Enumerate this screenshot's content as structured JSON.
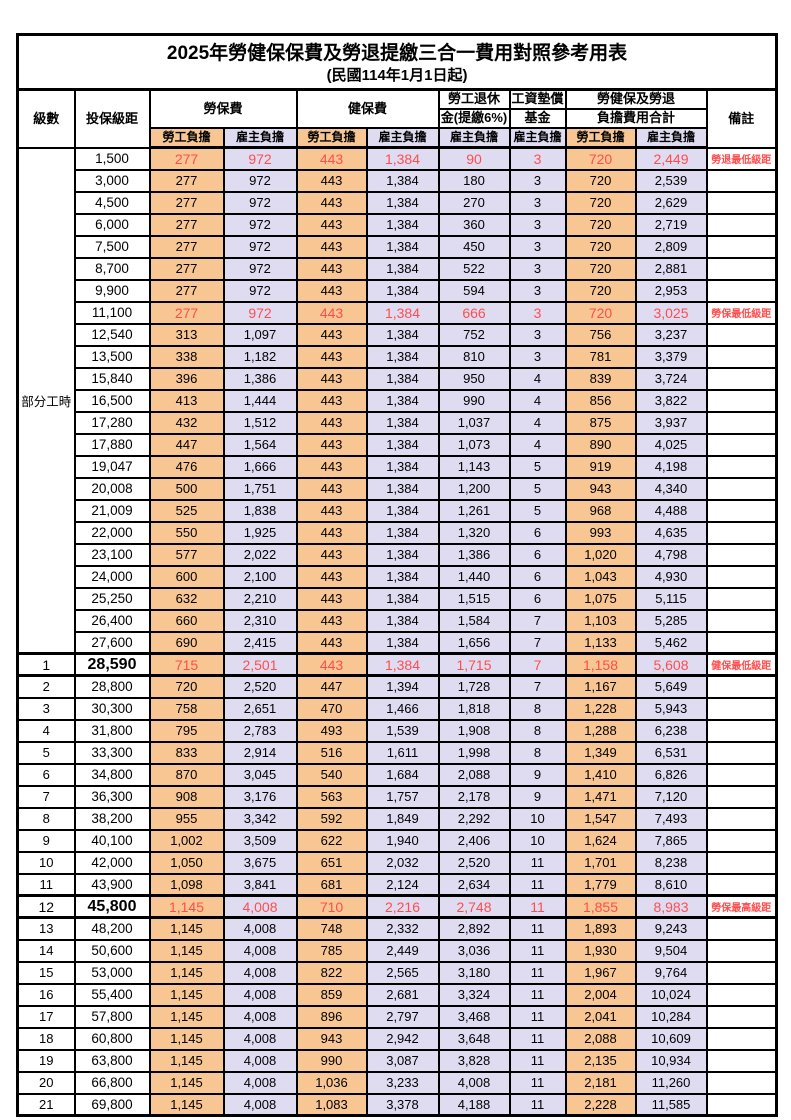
{
  "title": "2025年勞健保保費及勞退提繳三合一費用對照參考用表",
  "subtitle": "(民國114年1月1日起)",
  "header": {
    "level": "級數",
    "bracket": "投保級距",
    "labor_fee": "勞保費",
    "health_fee": "健保費",
    "pension_line1": "勞工退休",
    "pension_line2": "金(提繳6%)",
    "wage_fund_line1": "工資墊償",
    "wage_fund_line2": "基金",
    "total_line1": "勞健保及勞退",
    "total_line2": "負擔費用合計",
    "note": "備註",
    "employee_share": "勞工負擔",
    "employer_share": "雇主負擔"
  },
  "part_time_label": "部分工時",
  "colors": {
    "employee_bg": "#F8C693",
    "employer_bg": "#DFDCF2",
    "highlight_red": "#FF4D4D"
  },
  "rows": [
    {
      "lv": "",
      "amt": "1,500",
      "v": [
        "277",
        "972",
        "443",
        "1,384",
        "90",
        "3",
        "720",
        "2,449"
      ],
      "note": "勞退最低級距",
      "hl": true,
      "big": false
    },
    {
      "lv": "",
      "amt": "3,000",
      "v": [
        "277",
        "972",
        "443",
        "1,384",
        "180",
        "3",
        "720",
        "2,539"
      ],
      "note": "",
      "hl": false,
      "big": false
    },
    {
      "lv": "",
      "amt": "4,500",
      "v": [
        "277",
        "972",
        "443",
        "1,384",
        "270",
        "3",
        "720",
        "2,629"
      ],
      "note": "",
      "hl": false,
      "big": false
    },
    {
      "lv": "",
      "amt": "6,000",
      "v": [
        "277",
        "972",
        "443",
        "1,384",
        "360",
        "3",
        "720",
        "2,719"
      ],
      "note": "",
      "hl": false,
      "big": false
    },
    {
      "lv": "",
      "amt": "7,500",
      "v": [
        "277",
        "972",
        "443",
        "1,384",
        "450",
        "3",
        "720",
        "2,809"
      ],
      "note": "",
      "hl": false,
      "big": false
    },
    {
      "lv": "",
      "amt": "8,700",
      "v": [
        "277",
        "972",
        "443",
        "1,384",
        "522",
        "3",
        "720",
        "2,881"
      ],
      "note": "",
      "hl": false,
      "big": false
    },
    {
      "lv": "",
      "amt": "9,900",
      "v": [
        "277",
        "972",
        "443",
        "1,384",
        "594",
        "3",
        "720",
        "2,953"
      ],
      "note": "",
      "hl": false,
      "big": false
    },
    {
      "lv": "",
      "amt": "11,100",
      "v": [
        "277",
        "972",
        "443",
        "1,384",
        "666",
        "3",
        "720",
        "3,025"
      ],
      "note": "勞保最低級距",
      "hl": true,
      "big": false
    },
    {
      "lv": "",
      "amt": "12,540",
      "v": [
        "313",
        "1,097",
        "443",
        "1,384",
        "752",
        "3",
        "756",
        "3,237"
      ],
      "note": "",
      "hl": false,
      "big": false
    },
    {
      "lv": "",
      "amt": "13,500",
      "v": [
        "338",
        "1,182",
        "443",
        "1,384",
        "810",
        "3",
        "781",
        "3,379"
      ],
      "note": "",
      "hl": false,
      "big": false
    },
    {
      "lv": "",
      "amt": "15,840",
      "v": [
        "396",
        "1,386",
        "443",
        "1,384",
        "950",
        "4",
        "839",
        "3,724"
      ],
      "note": "",
      "hl": false,
      "big": false
    },
    {
      "lv": "",
      "amt": "16,500",
      "v": [
        "413",
        "1,444",
        "443",
        "1,384",
        "990",
        "4",
        "856",
        "3,822"
      ],
      "note": "",
      "hl": false,
      "big": false
    },
    {
      "lv": "",
      "amt": "17,280",
      "v": [
        "432",
        "1,512",
        "443",
        "1,384",
        "1,037",
        "4",
        "875",
        "3,937"
      ],
      "note": "",
      "hl": false,
      "big": false
    },
    {
      "lv": "",
      "amt": "17,880",
      "v": [
        "447",
        "1,564",
        "443",
        "1,384",
        "1,073",
        "4",
        "890",
        "4,025"
      ],
      "note": "",
      "hl": false,
      "big": false
    },
    {
      "lv": "",
      "amt": "19,047",
      "v": [
        "476",
        "1,666",
        "443",
        "1,384",
        "1,143",
        "5",
        "919",
        "4,198"
      ],
      "note": "",
      "hl": false,
      "big": false
    },
    {
      "lv": "",
      "amt": "20,008",
      "v": [
        "500",
        "1,751",
        "443",
        "1,384",
        "1,200",
        "5",
        "943",
        "4,340"
      ],
      "note": "",
      "hl": false,
      "big": false
    },
    {
      "lv": "",
      "amt": "21,009",
      "v": [
        "525",
        "1,838",
        "443",
        "1,384",
        "1,261",
        "5",
        "968",
        "4,488"
      ],
      "note": "",
      "hl": false,
      "big": false
    },
    {
      "lv": "",
      "amt": "22,000",
      "v": [
        "550",
        "1,925",
        "443",
        "1,384",
        "1,320",
        "6",
        "993",
        "4,635"
      ],
      "note": "",
      "hl": false,
      "big": false
    },
    {
      "lv": "",
      "amt": "23,100",
      "v": [
        "577",
        "2,022",
        "443",
        "1,384",
        "1,386",
        "6",
        "1,020",
        "4,798"
      ],
      "note": "",
      "hl": false,
      "big": false
    },
    {
      "lv": "",
      "amt": "24,000",
      "v": [
        "600",
        "2,100",
        "443",
        "1,384",
        "1,440",
        "6",
        "1,043",
        "4,930"
      ],
      "note": "",
      "hl": false,
      "big": false
    },
    {
      "lv": "",
      "amt": "25,250",
      "v": [
        "632",
        "2,210",
        "443",
        "1,384",
        "1,515",
        "6",
        "1,075",
        "5,115"
      ],
      "note": "",
      "hl": false,
      "big": false
    },
    {
      "lv": "",
      "amt": "26,400",
      "v": [
        "660",
        "2,310",
        "443",
        "1,384",
        "1,584",
        "7",
        "1,103",
        "5,285"
      ],
      "note": "",
      "hl": false,
      "big": false
    },
    {
      "lv": "",
      "amt": "27,600",
      "v": [
        "690",
        "2,415",
        "443",
        "1,384",
        "1,656",
        "7",
        "1,133",
        "5,462"
      ],
      "note": "",
      "hl": false,
      "big": false
    },
    {
      "lv": "1",
      "amt": "28,590",
      "v": [
        "715",
        "2,501",
        "443",
        "1,384",
        "1,715",
        "7",
        "1,158",
        "5,608"
      ],
      "note": "健保最低級距",
      "hl": true,
      "big": true
    },
    {
      "lv": "2",
      "amt": "28,800",
      "v": [
        "720",
        "2,520",
        "447",
        "1,394",
        "1,728",
        "7",
        "1,167",
        "5,649"
      ],
      "note": "",
      "hl": false,
      "big": false
    },
    {
      "lv": "3",
      "amt": "30,300",
      "v": [
        "758",
        "2,651",
        "470",
        "1,466",
        "1,818",
        "8",
        "1,228",
        "5,943"
      ],
      "note": "",
      "hl": false,
      "big": false
    },
    {
      "lv": "4",
      "amt": "31,800",
      "v": [
        "795",
        "2,783",
        "493",
        "1,539",
        "1,908",
        "8",
        "1,288",
        "6,238"
      ],
      "note": "",
      "hl": false,
      "big": false
    },
    {
      "lv": "5",
      "amt": "33,300",
      "v": [
        "833",
        "2,914",
        "516",
        "1,611",
        "1,998",
        "8",
        "1,349",
        "6,531"
      ],
      "note": "",
      "hl": false,
      "big": false
    },
    {
      "lv": "6",
      "amt": "34,800",
      "v": [
        "870",
        "3,045",
        "540",
        "1,684",
        "2,088",
        "9",
        "1,410",
        "6,826"
      ],
      "note": "",
      "hl": false,
      "big": false
    },
    {
      "lv": "7",
      "amt": "36,300",
      "v": [
        "908",
        "3,176",
        "563",
        "1,757",
        "2,178",
        "9",
        "1,471",
        "7,120"
      ],
      "note": "",
      "hl": false,
      "big": false
    },
    {
      "lv": "8",
      "amt": "38,200",
      "v": [
        "955",
        "3,342",
        "592",
        "1,849",
        "2,292",
        "10",
        "1,547",
        "7,493"
      ],
      "note": "",
      "hl": false,
      "big": false
    },
    {
      "lv": "9",
      "amt": "40,100",
      "v": [
        "1,002",
        "3,509",
        "622",
        "1,940",
        "2,406",
        "10",
        "1,624",
        "7,865"
      ],
      "note": "",
      "hl": false,
      "big": false
    },
    {
      "lv": "10",
      "amt": "42,000",
      "v": [
        "1,050",
        "3,675",
        "651",
        "2,032",
        "2,520",
        "11",
        "1,701",
        "8,238"
      ],
      "note": "",
      "hl": false,
      "big": false
    },
    {
      "lv": "11",
      "amt": "43,900",
      "v": [
        "1,098",
        "3,841",
        "681",
        "2,124",
        "2,634",
        "11",
        "1,779",
        "8,610"
      ],
      "note": "",
      "hl": false,
      "big": false
    },
    {
      "lv": "12",
      "amt": "45,800",
      "v": [
        "1,145",
        "4,008",
        "710",
        "2,216",
        "2,748",
        "11",
        "1,855",
        "8,983"
      ],
      "note": "勞保最高級距",
      "hl": true,
      "big": true
    },
    {
      "lv": "13",
      "amt": "48,200",
      "v": [
        "1,145",
        "4,008",
        "748",
        "2,332",
        "2,892",
        "11",
        "1,893",
        "9,243"
      ],
      "note": "",
      "hl": false,
      "big": false
    },
    {
      "lv": "14",
      "amt": "50,600",
      "v": [
        "1,145",
        "4,008",
        "785",
        "2,449",
        "3,036",
        "11",
        "1,930",
        "9,504"
      ],
      "note": "",
      "hl": false,
      "big": false
    },
    {
      "lv": "15",
      "amt": "53,000",
      "v": [
        "1,145",
        "4,008",
        "822",
        "2,565",
        "3,180",
        "11",
        "1,967",
        "9,764"
      ],
      "note": "",
      "hl": false,
      "big": false
    },
    {
      "lv": "16",
      "amt": "55,400",
      "v": [
        "1,145",
        "4,008",
        "859",
        "2,681",
        "3,324",
        "11",
        "2,004",
        "10,024"
      ],
      "note": "",
      "hl": false,
      "big": false
    },
    {
      "lv": "17",
      "amt": "57,800",
      "v": [
        "1,145",
        "4,008",
        "896",
        "2,797",
        "3,468",
        "11",
        "2,041",
        "10,284"
      ],
      "note": "",
      "hl": false,
      "big": false
    },
    {
      "lv": "18",
      "amt": "60,800",
      "v": [
        "1,145",
        "4,008",
        "943",
        "2,942",
        "3,648",
        "11",
        "2,088",
        "10,609"
      ],
      "note": "",
      "hl": false,
      "big": false
    },
    {
      "lv": "19",
      "amt": "63,800",
      "v": [
        "1,145",
        "4,008",
        "990",
        "3,087",
        "3,828",
        "11",
        "2,135",
        "10,934"
      ],
      "note": "",
      "hl": false,
      "big": false
    },
    {
      "lv": "20",
      "amt": "66,800",
      "v": [
        "1,145",
        "4,008",
        "1,036",
        "3,233",
        "4,008",
        "11",
        "2,181",
        "11,260"
      ],
      "note": "",
      "hl": false,
      "big": false
    },
    {
      "lv": "21",
      "amt": "69,800",
      "v": [
        "1,145",
        "4,008",
        "1,083",
        "3,378",
        "4,188",
        "11",
        "2,228",
        "11,585"
      ],
      "note": "",
      "hl": false,
      "big": false
    }
  ]
}
